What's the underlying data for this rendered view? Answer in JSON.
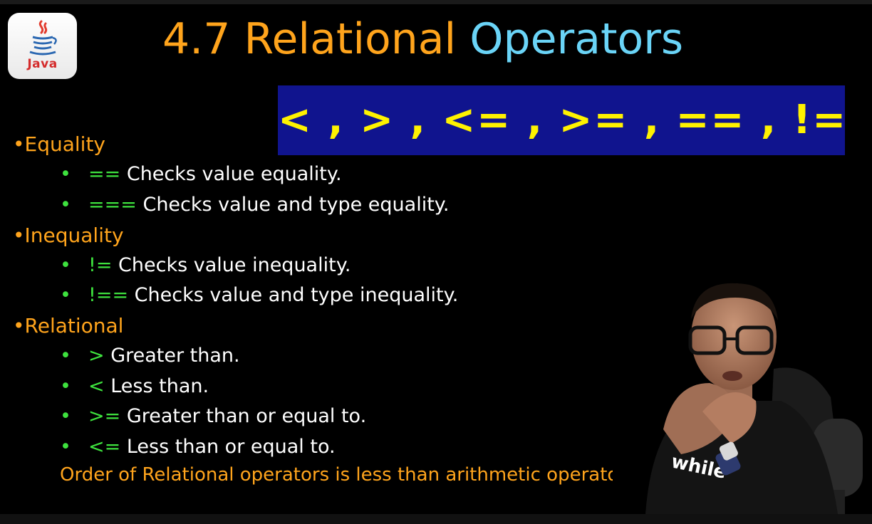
{
  "logo": {
    "word": "Java",
    "icon": "java-coffee-cup-icon"
  },
  "title": {
    "part1": "4.7 Relational",
    "part2": "Operators"
  },
  "operators_banner": "< , > , <= , >= , == , !=",
  "sections": [
    {
      "heading": "•Equality",
      "items": [
        {
          "op": "==",
          "text": "Checks value equality."
        },
        {
          "op": "===",
          "text": "Checks value and type equality."
        }
      ]
    },
    {
      "heading": "•Inequality",
      "items": [
        {
          "op": "!=",
          "text": "Checks value inequality."
        },
        {
          "op": "!==",
          "text": "Checks value and type inequality."
        }
      ]
    },
    {
      "heading": "•Relational",
      "items": [
        {
          "op": ">",
          "text": "Greater than."
        },
        {
          "op": "<",
          "text": "Less than."
        },
        {
          "op": ">=",
          "text": "Greater than or equal to."
        },
        {
          "op": "<=",
          "text": "Less than or equal to."
        }
      ]
    }
  ],
  "bullet": "•",
  "note": "Order of Relational operators is less than arithmetic operator",
  "presenter": {
    "shirt_text": "while"
  },
  "colors": {
    "heading": "#ffa41c",
    "title_accent": "#6ad4f7",
    "operator_green": "#3ee23e",
    "banner_bg": "#10148e",
    "banner_text": "#fff200"
  }
}
